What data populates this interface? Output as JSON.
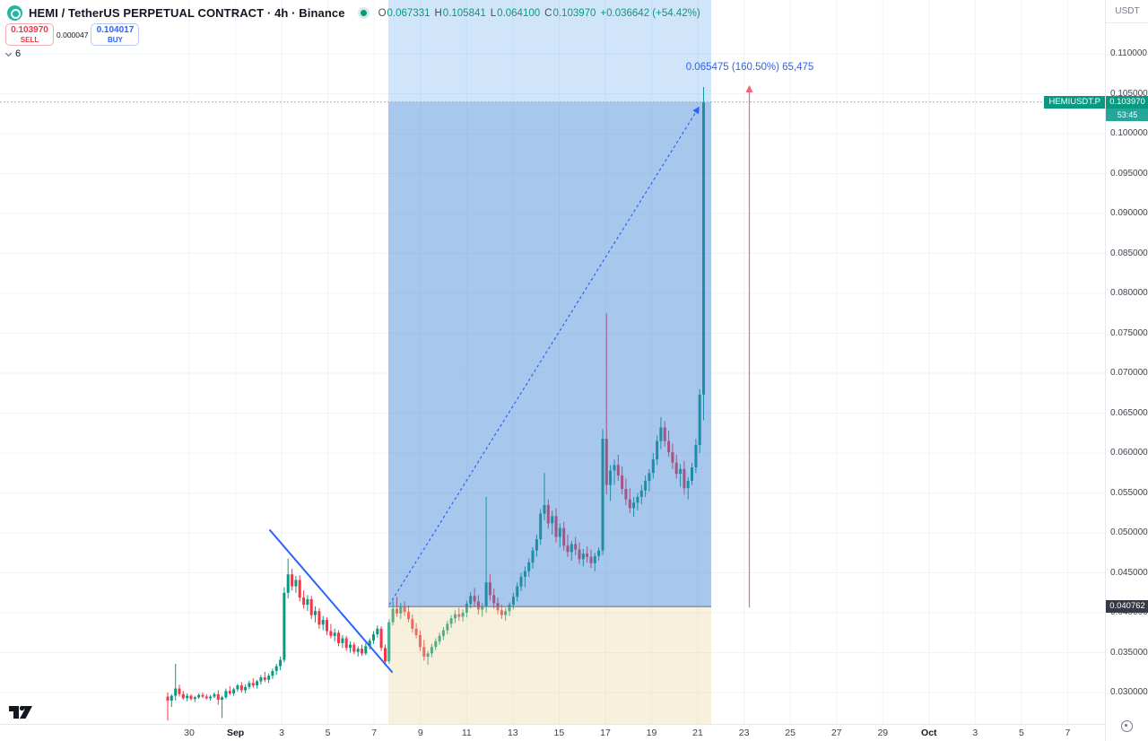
{
  "header": {
    "symbol_title": "HEMI / TetherUS PERPETUAL CONTRACT · 4h · Binance",
    "ohlc": {
      "o_label": "O",
      "o_value": "0.067331",
      "h_label": "H",
      "h_value": "0.105841",
      "l_label": "L",
      "l_value": "0.064100",
      "c_label": "C",
      "c_value": "0.103970",
      "change_value": "+0.036642 (+54.42%)"
    }
  },
  "trade_panel": {
    "sell_price": "0.103970",
    "sell_label": "SELL",
    "spread": "0.000047",
    "buy_price": "0.104017",
    "buy_label": "BUY"
  },
  "object_tree": {
    "collapsed_count": "6"
  },
  "measurement": {
    "label": "0.065475 (160.50%) 65,475"
  },
  "price_axis": {
    "currency": "USDT",
    "ticks": [
      "0.110000",
      "0.105000",
      "0.100000",
      "0.095000",
      "0.090000",
      "0.085000",
      "0.080000",
      "0.075000",
      "0.070000",
      "0.065000",
      "0.060000",
      "0.055000",
      "0.050000",
      "0.045000",
      "0.040000",
      "0.035000",
      "0.030000"
    ],
    "current": {
      "symbol": "HEMIUSDT.P",
      "price": "0.103970",
      "countdown": "53:45"
    },
    "level_badge": "0.040762"
  },
  "time_axis": {
    "ticks": [
      {
        "label": "30",
        "bold": false
      },
      {
        "label": "Sep",
        "bold": true
      },
      {
        "label": "3",
        "bold": false
      },
      {
        "label": "5",
        "bold": false
      },
      {
        "label": "7",
        "bold": false
      },
      {
        "label": "9",
        "bold": false
      },
      {
        "label": "11",
        "bold": false
      },
      {
        "label": "13",
        "bold": false
      },
      {
        "label": "15",
        "bold": false
      },
      {
        "label": "17",
        "bold": false
      },
      {
        "label": "19",
        "bold": false
      },
      {
        "label": "21",
        "bold": false
      },
      {
        "label": "23",
        "bold": false
      },
      {
        "label": "25",
        "bold": false
      },
      {
        "label": "27",
        "bold": false
      },
      {
        "label": "29",
        "bold": false
      },
      {
        "label": "Oct",
        "bold": true
      },
      {
        "label": "3",
        "bold": false
      },
      {
        "label": "5",
        "bold": false
      },
      {
        "label": "7",
        "bold": false
      }
    ]
  },
  "colors": {
    "up": "#089981",
    "down": "#f23645",
    "blue": "#2962ff",
    "grid": "#f0f3fa",
    "box_blue_light": "rgba(58,147,232,0.24)",
    "box_blue": "rgba(58,127,213,0.44)",
    "box_cream": "rgba(233,210,152,0.34)",
    "baseline_gray": "#787b86",
    "arrow_red": "#f23645"
  },
  "chart_data": {
    "type": "candlestick",
    "title": "HEMI / TetherUS PERPETUAL CONTRACT",
    "interval": "4h",
    "exchange": "Binance",
    "ylabel": "Price (USDT)",
    "ylim": [
      0.03,
      0.11
    ],
    "y_tick_step": 0.005,
    "grid": true,
    "x_tick_labels": [
      "30",
      "Sep",
      "3",
      "5",
      "7",
      "9",
      "11",
      "13",
      "15",
      "17",
      "19",
      "21",
      "23",
      "25",
      "27",
      "29",
      "Oct",
      "3",
      "5",
      "7"
    ],
    "last_close": 0.10397,
    "measure_tool": {
      "baseline_price": 0.040762,
      "price_change": 0.065475,
      "percent": "160.50%",
      "secondary": "65,475"
    },
    "candles_format": [
      "open",
      "high",
      "low",
      "close"
    ],
    "candles": [
      [
        0.0295,
        0.03,
        0.0265,
        0.029
      ],
      [
        0.029,
        0.0298,
        0.0282,
        0.0296
      ],
      [
        0.0296,
        0.0336,
        0.029,
        0.0305
      ],
      [
        0.0305,
        0.031,
        0.0295,
        0.0298
      ],
      [
        0.0298,
        0.0302,
        0.0291,
        0.0293
      ],
      [
        0.0293,
        0.0299,
        0.0289,
        0.0296
      ],
      [
        0.0296,
        0.0298,
        0.029,
        0.0292
      ],
      [
        0.0292,
        0.0296,
        0.0288,
        0.0294
      ],
      [
        0.0294,
        0.0299,
        0.0292,
        0.0297
      ],
      [
        0.0297,
        0.03,
        0.0293,
        0.0295
      ],
      [
        0.0295,
        0.0298,
        0.0291,
        0.0293
      ],
      [
        0.0293,
        0.0297,
        0.029,
        0.0295
      ],
      [
        0.0295,
        0.03,
        0.0293,
        0.0298
      ],
      [
        0.0298,
        0.0303,
        0.0285,
        0.0291
      ],
      [
        0.0291,
        0.0296,
        0.0268,
        0.0294
      ],
      [
        0.0294,
        0.0305,
        0.0292,
        0.0302
      ],
      [
        0.0302,
        0.0308,
        0.0297,
        0.0299
      ],
      [
        0.0299,
        0.0306,
        0.0296,
        0.0304
      ],
      [
        0.0304,
        0.0311,
        0.0301,
        0.0309
      ],
      [
        0.0309,
        0.0313,
        0.03,
        0.0303
      ],
      [
        0.0303,
        0.031,
        0.0299,
        0.0307
      ],
      [
        0.0307,
        0.0315,
        0.0304,
        0.0312
      ],
      [
        0.0312,
        0.0318,
        0.0306,
        0.0309
      ],
      [
        0.0309,
        0.0316,
        0.0305,
        0.0314
      ],
      [
        0.0314,
        0.0322,
        0.031,
        0.0319
      ],
      [
        0.0319,
        0.0326,
        0.0313,
        0.0316
      ],
      [
        0.0316,
        0.0324,
        0.0312,
        0.0321
      ],
      [
        0.0321,
        0.033,
        0.0317,
        0.0327
      ],
      [
        0.0327,
        0.0336,
        0.0322,
        0.0333
      ],
      [
        0.0333,
        0.0345,
        0.0328,
        0.0341
      ],
      [
        0.0341,
        0.0432,
        0.0338,
        0.0425
      ],
      [
        0.0425,
        0.0468,
        0.0418,
        0.0448
      ],
      [
        0.0448,
        0.0455,
        0.0428,
        0.0433
      ],
      [
        0.0433,
        0.0446,
        0.0425,
        0.0441
      ],
      [
        0.0441,
        0.0447,
        0.0414,
        0.0419
      ],
      [
        0.0419,
        0.0428,
        0.0405,
        0.041
      ],
      [
        0.041,
        0.0422,
        0.0402,
        0.0417
      ],
      [
        0.0417,
        0.0421,
        0.0392,
        0.0397
      ],
      [
        0.0397,
        0.0408,
        0.0388,
        0.0402
      ],
      [
        0.0402,
        0.0406,
        0.038,
        0.0385
      ],
      [
        0.0385,
        0.0396,
        0.0378,
        0.0391
      ],
      [
        0.0391,
        0.0394,
        0.0372,
        0.0377
      ],
      [
        0.0377,
        0.0386,
        0.0368,
        0.0371
      ],
      [
        0.0371,
        0.038,
        0.0364,
        0.0375
      ],
      [
        0.0375,
        0.0378,
        0.0358,
        0.0362
      ],
      [
        0.0362,
        0.0372,
        0.0356,
        0.0368
      ],
      [
        0.0368,
        0.0371,
        0.0352,
        0.0356
      ],
      [
        0.0356,
        0.0364,
        0.035,
        0.036
      ],
      [
        0.036,
        0.0363,
        0.0348,
        0.0351
      ],
      [
        0.0351,
        0.0358,
        0.0345,
        0.0355
      ],
      [
        0.0355,
        0.036,
        0.0346,
        0.0349
      ],
      [
        0.0349,
        0.0362,
        0.0347,
        0.0358
      ],
      [
        0.0358,
        0.0368,
        0.0354,
        0.0365
      ],
      [
        0.0365,
        0.0377,
        0.0361,
        0.0373
      ],
      [
        0.0373,
        0.0384,
        0.0369,
        0.038
      ],
      [
        0.038,
        0.0383,
        0.0352,
        0.0356
      ],
      [
        0.0356,
        0.036,
        0.0334,
        0.0339
      ],
      [
        0.0339,
        0.0392,
        0.0336,
        0.0388
      ],
      [
        0.0388,
        0.0415,
        0.0384,
        0.0405
      ],
      [
        0.0405,
        0.042,
        0.0395,
        0.0399
      ],
      [
        0.0399,
        0.0412,
        0.0392,
        0.0408
      ],
      [
        0.0408,
        0.0414,
        0.0396,
        0.0401
      ],
      [
        0.0401,
        0.0409,
        0.0388,
        0.0392
      ],
      [
        0.0392,
        0.0398,
        0.0375,
        0.038
      ],
      [
        0.038,
        0.0387,
        0.0368,
        0.0372
      ],
      [
        0.0372,
        0.0378,
        0.0352,
        0.0357
      ],
      [
        0.0357,
        0.0366,
        0.034,
        0.0345
      ],
      [
        0.0345,
        0.0352,
        0.0335,
        0.0349
      ],
      [
        0.0349,
        0.0361,
        0.0344,
        0.0357
      ],
      [
        0.0357,
        0.0368,
        0.0353,
        0.0364
      ],
      [
        0.0364,
        0.0375,
        0.036,
        0.0371
      ],
      [
        0.0371,
        0.0382,
        0.0366,
        0.0378
      ],
      [
        0.0378,
        0.039,
        0.0373,
        0.0386
      ],
      [
        0.0386,
        0.0397,
        0.0381,
        0.0393
      ],
      [
        0.0393,
        0.0403,
        0.0387,
        0.0398
      ],
      [
        0.0398,
        0.0406,
        0.039,
        0.0395
      ],
      [
        0.0395,
        0.0404,
        0.0389,
        0.04
      ],
      [
        0.04,
        0.0415,
        0.0394,
        0.0411
      ],
      [
        0.0411,
        0.0426,
        0.0405,
        0.0421
      ],
      [
        0.0421,
        0.0431,
        0.0408,
        0.0414
      ],
      [
        0.0414,
        0.0422,
        0.0398,
        0.0404
      ],
      [
        0.0404,
        0.0412,
        0.0395,
        0.0408
      ],
      [
        0.0408,
        0.0545,
        0.04,
        0.0438
      ],
      [
        0.0438,
        0.0448,
        0.0415,
        0.0422
      ],
      [
        0.0422,
        0.043,
        0.0405,
        0.0412
      ],
      [
        0.0412,
        0.0419,
        0.0398,
        0.0403
      ],
      [
        0.0403,
        0.041,
        0.0392,
        0.0397
      ],
      [
        0.0397,
        0.0406,
        0.039,
        0.0402
      ],
      [
        0.0402,
        0.0413,
        0.0396,
        0.041
      ],
      [
        0.041,
        0.0425,
        0.0404,
        0.042
      ],
      [
        0.042,
        0.0438,
        0.0414,
        0.0433
      ],
      [
        0.0433,
        0.045,
        0.0427,
        0.0445
      ],
      [
        0.0445,
        0.0458,
        0.0432,
        0.0452
      ],
      [
        0.0452,
        0.0468,
        0.0445,
        0.0463
      ],
      [
        0.0463,
        0.0482,
        0.0455,
        0.0478
      ],
      [
        0.0478,
        0.0498,
        0.047,
        0.0492
      ],
      [
        0.0492,
        0.053,
        0.0485,
        0.0524
      ],
      [
        0.0524,
        0.0575,
        0.0516,
        0.0535
      ],
      [
        0.0535,
        0.0542,
        0.0505,
        0.0512
      ],
      [
        0.0512,
        0.0528,
        0.0498,
        0.0521
      ],
      [
        0.0521,
        0.0531,
        0.0488,
        0.0495
      ],
      [
        0.0495,
        0.0512,
        0.0482,
        0.0506
      ],
      [
        0.0506,
        0.0514,
        0.0478,
        0.0484
      ],
      [
        0.0484,
        0.0498,
        0.047,
        0.0476
      ],
      [
        0.0476,
        0.049,
        0.0465,
        0.0486
      ],
      [
        0.0486,
        0.0495,
        0.0472,
        0.0479
      ],
      [
        0.0479,
        0.0488,
        0.0461,
        0.0467
      ],
      [
        0.0467,
        0.048,
        0.0458,
        0.0474
      ],
      [
        0.0474,
        0.0483,
        0.0463,
        0.047
      ],
      [
        0.047,
        0.0479,
        0.0456,
        0.0462
      ],
      [
        0.0462,
        0.0475,
        0.0452,
        0.0471
      ],
      [
        0.0471,
        0.0482,
        0.0465,
        0.0478
      ],
      [
        0.0478,
        0.063,
        0.0472,
        0.0618
      ],
      [
        0.0618,
        0.0775,
        0.0548,
        0.056
      ],
      [
        0.056,
        0.0585,
        0.054,
        0.0578
      ],
      [
        0.0578,
        0.0592,
        0.056,
        0.0585
      ],
      [
        0.0585,
        0.0598,
        0.0565,
        0.0572
      ],
      [
        0.0572,
        0.0583,
        0.0548,
        0.0555
      ],
      [
        0.0555,
        0.0568,
        0.0535,
        0.0542
      ],
      [
        0.0542,
        0.0556,
        0.0525,
        0.0531
      ],
      [
        0.0531,
        0.0545,
        0.052,
        0.0538
      ],
      [
        0.0538,
        0.055,
        0.0528,
        0.0545
      ],
      [
        0.0545,
        0.056,
        0.0536,
        0.0553
      ],
      [
        0.0553,
        0.0572,
        0.0545,
        0.0565
      ],
      [
        0.0565,
        0.058,
        0.0552,
        0.0575
      ],
      [
        0.0575,
        0.06,
        0.0568,
        0.0592
      ],
      [
        0.0592,
        0.0622,
        0.0585,
        0.0615
      ],
      [
        0.0615,
        0.0645,
        0.0605,
        0.0632
      ],
      [
        0.0632,
        0.064,
        0.0608,
        0.0615
      ],
      [
        0.0615,
        0.0628,
        0.0595,
        0.0601
      ],
      [
        0.0601,
        0.0612,
        0.058,
        0.0588
      ],
      [
        0.0588,
        0.0598,
        0.0568,
        0.0574
      ],
      [
        0.0574,
        0.0586,
        0.0558,
        0.058
      ],
      [
        0.058,
        0.059,
        0.0548,
        0.0556
      ],
      [
        0.0556,
        0.057,
        0.0542,
        0.0565
      ],
      [
        0.0565,
        0.0588,
        0.056,
        0.0582
      ],
      [
        0.0582,
        0.0618,
        0.0575,
        0.061
      ],
      [
        0.061,
        0.068,
        0.06,
        0.0673
      ],
      [
        0.067331,
        0.105841,
        0.0641,
        0.10397
      ]
    ]
  }
}
